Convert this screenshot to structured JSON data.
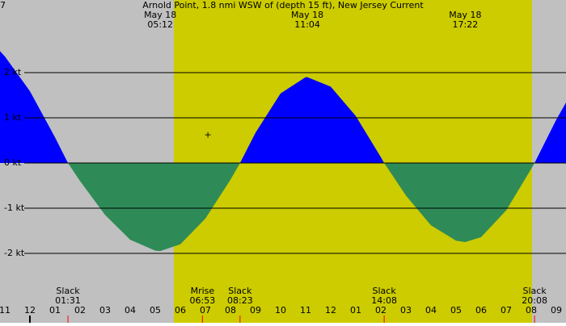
{
  "chart_data": {
    "type": "area",
    "title": "Arnold Point, 1.8 nmi WSW of (depth 15 ft), New Jersey Current",
    "corner_label": "7",
    "marker": "+",
    "marker_at": [
      7.1,
      0.62
    ],
    "x": [
      -1.2,
      -1,
      0,
      1,
      1.517,
      2,
      3,
      4,
      5,
      5.2,
      6,
      7,
      8,
      8.383,
      9,
      10,
      11,
      11.067,
      12,
      13,
      14,
      14.133,
      15,
      16,
      17,
      17.367,
      18,
      19,
      20,
      20.133,
      21,
      21.4
    ],
    "values": [
      2.48,
      2.36,
      1.59,
      0.57,
      0,
      -0.4,
      -1.15,
      -1.7,
      -1.94,
      -1.95,
      -1.8,
      -1.23,
      -0.37,
      0,
      0.67,
      1.54,
      1.9,
      1.9,
      1.69,
      1.04,
      0.13,
      0,
      -0.72,
      -1.38,
      -1.72,
      -1.75,
      -1.64,
      -1.05,
      -0.13,
      0,
      0.96,
      1.35
    ],
    "flood_color": "#0000ff",
    "ebb_color": "#2e8b57",
    "background_color": "#c0c0c0",
    "daylight_color": "#cccc00",
    "daylight": [
      5.74,
      20.03
    ],
    "xlim": [
      -1.1935,
      21.387
    ],
    "ylim": [
      -3.536,
      3.607
    ],
    "yticks": [
      {
        "value": 2,
        "label": "2 kt"
      },
      {
        "value": 1,
        "label": "1 kt"
      },
      {
        "value": 0,
        "label": "0 kt"
      },
      {
        "value": -1,
        "label": "-1 kt"
      },
      {
        "value": -2,
        "label": "-2 kt"
      }
    ],
    "grid": true,
    "xticks": [
      {
        "value": -1,
        "label": "11"
      },
      {
        "value": 0,
        "label": "12"
      },
      {
        "value": 1,
        "label": "01"
      },
      {
        "value": 2,
        "label": "02"
      },
      {
        "value": 3,
        "label": "03"
      },
      {
        "value": 4,
        "label": "04"
      },
      {
        "value": 5,
        "label": "05"
      },
      {
        "value": 6,
        "label": "06"
      },
      {
        "value": 7,
        "label": "07"
      },
      {
        "value": 8,
        "label": "08"
      },
      {
        "value": 9,
        "label": "09"
      },
      {
        "value": 10,
        "label": "10"
      },
      {
        "value": 11,
        "label": "11"
      },
      {
        "value": 12,
        "label": "12"
      },
      {
        "value": 13,
        "label": "01"
      },
      {
        "value": 14,
        "label": "02"
      },
      {
        "value": 15,
        "label": "03"
      },
      {
        "value": 16,
        "label": "04"
      },
      {
        "value": 17,
        "label": "05"
      },
      {
        "value": 18,
        "label": "06"
      },
      {
        "value": 19,
        "label": "07"
      },
      {
        "value": 20,
        "label": "08"
      },
      {
        "value": 21,
        "label": "09"
      }
    ],
    "midnight": 0,
    "extremes": [
      {
        "x": 5.2,
        "date": "May 18",
        "time": "05:12"
      },
      {
        "x": 11.067,
        "date": "May 18",
        "time": "11:04"
      },
      {
        "x": 17.367,
        "date": "May 18",
        "time": "17:22"
      }
    ],
    "events": [
      {
        "x": 1.517,
        "name": "Slack",
        "time": "01:31"
      },
      {
        "x": 6.883,
        "name": "Mrise",
        "time": "06:53"
      },
      {
        "x": 8.383,
        "name": "Slack",
        "time": "08:23"
      },
      {
        "x": 14.133,
        "name": "Slack",
        "time": "14:08"
      },
      {
        "x": 20.133,
        "name": "Slack",
        "time": "20:08"
      }
    ]
  }
}
